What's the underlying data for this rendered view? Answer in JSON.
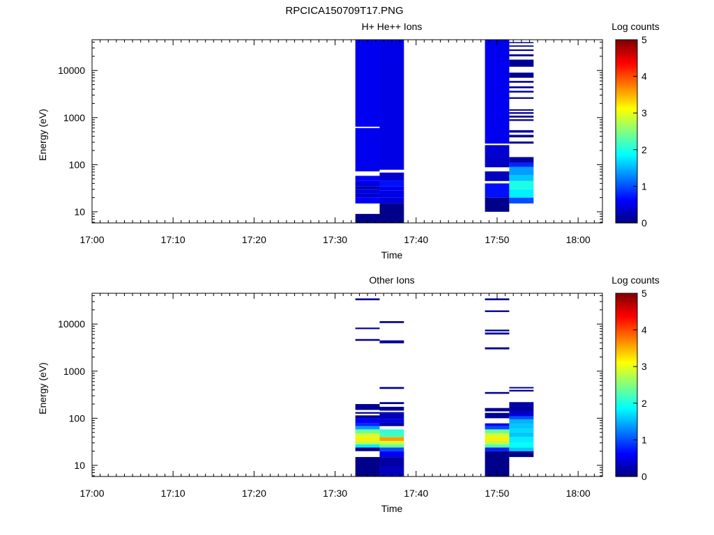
{
  "figure_title": "RPCICA150709T17.PNG",
  "colors": {
    "axis": "#000000",
    "background": "#ffffff"
  },
  "chart_data": [
    {
      "type": "heatmap",
      "title": "H+ He++ Ions",
      "xlabel": "Time",
      "ylabel": "Energy (eV)",
      "x_scale": "time",
      "y_scale": "log",
      "xlim": [
        "17:00",
        "18:03"
      ],
      "ylim": [
        5.8,
        45000
      ],
      "x_ticks": [
        "17:00",
        "17:10",
        "17:20",
        "17:30",
        "17:40",
        "17:50",
        "18:00"
      ],
      "y_ticks": [
        10,
        100,
        1000,
        10000
      ],
      "y_tick_labels": [
        "10",
        "100",
        "1000",
        "10000"
      ],
      "colorbar": {
        "label": "Log counts",
        "range": [
          0,
          5
        ],
        "ticks": [
          "0",
          "1",
          "2",
          "3",
          "4",
          "5"
        ],
        "colormap": "jet"
      },
      "columns": [
        {
          "start": "17:32.5",
          "end": "17:35.5",
          "cells": [
            [
              5.8,
              9,
              0.05
            ],
            [
              9,
              15,
              null
            ],
            [
              15,
              20,
              0.6
            ],
            [
              20,
              25,
              0.4
            ],
            [
              25,
              30,
              0.5
            ],
            [
              30,
              35,
              0.2
            ],
            [
              35,
              45,
              0.5
            ],
            [
              45,
              58,
              0.6
            ],
            [
              58,
              72,
              null
            ],
            [
              72,
              600,
              0.55
            ],
            [
              600,
              640,
              null
            ],
            [
              640,
              45000,
              0.55
            ]
          ]
        },
        {
          "start": "17:35.5",
          "end": "17:38.5",
          "cells": [
            [
              5.8,
              15,
              0.05
            ],
            [
              15,
              20,
              0.45
            ],
            [
              20,
              28,
              0.5
            ],
            [
              28,
              35,
              0.55
            ],
            [
              35,
              45,
              0.7
            ],
            [
              45,
              68,
              0.4
            ],
            [
              68,
              78,
              null
            ],
            [
              78,
              45000,
              0.5
            ]
          ]
        },
        {
          "start": "17:48.5",
          "end": "17:51.5",
          "cells": [
            [
              10,
              20,
              0.05
            ],
            [
              20,
              40,
              0.7
            ],
            [
              40,
              45,
              null
            ],
            [
              45,
              72,
              0.3
            ],
            [
              72,
              88,
              null
            ],
            [
              88,
              150,
              0.35
            ],
            [
              150,
              260,
              0.4
            ],
            [
              260,
              280,
              null
            ],
            [
              280,
              45000,
              0.55
            ]
          ]
        },
        {
          "start": "17:51.5",
          "end": "17:54.5",
          "cells": [
            [
              15,
              20,
              1.0
            ],
            [
              20,
              30,
              1.8
            ],
            [
              30,
              45,
              2.0
            ],
            [
              45,
              60,
              1.6
            ],
            [
              60,
              90,
              1.4
            ],
            [
              90,
              110,
              0.8
            ],
            [
              110,
              145,
              0.2
            ],
            [
              280,
              310,
              0.1
            ],
            [
              380,
              430,
              0.1
            ],
            [
              480,
              540,
              0.1
            ],
            [
              850,
              920,
              0.1
            ],
            [
              1000,
              1100,
              0.1
            ],
            [
              1200,
              1300,
              0.1
            ],
            [
              1400,
              1500,
              0.1
            ],
            [
              2500,
              2700,
              0.1
            ],
            [
              3400,
              3700,
              0.1
            ],
            [
              4200,
              4600,
              0.1
            ],
            [
              5500,
              6000,
              0.1
            ],
            [
              7000,
              9000,
              0.1
            ],
            [
              12000,
              17000,
              0.1
            ],
            [
              20000,
              22000,
              0.1
            ],
            [
              26000,
              28000,
              0.1
            ],
            [
              32000,
              34000,
              0.1
            ],
            [
              38000,
              40000,
              0.1
            ]
          ]
        }
      ]
    },
    {
      "type": "heatmap",
      "title": "Other Ions",
      "xlabel": "Time",
      "ylabel": "Energy (eV)",
      "x_scale": "time",
      "y_scale": "log",
      "xlim": [
        "17:00",
        "18:03"
      ],
      "ylim": [
        5.8,
        45000
      ],
      "x_ticks": [
        "17:00",
        "17:10",
        "17:20",
        "17:30",
        "17:40",
        "17:50",
        "18:00"
      ],
      "y_ticks": [
        10,
        100,
        1000,
        10000
      ],
      "y_tick_labels": [
        "10",
        "100",
        "1000",
        "10000"
      ],
      "colorbar": {
        "label": "Log counts",
        "range": [
          0,
          5
        ],
        "ticks": [
          "0",
          "1",
          "2",
          "3",
          "4",
          "5"
        ],
        "colormap": "jet"
      },
      "columns": [
        {
          "start": "17:32.5",
          "end": "17:35.5",
          "cells": [
            [
              5.8,
              15,
              0.05
            ],
            [
              15,
              20,
              null
            ],
            [
              20,
              24,
              0.05
            ],
            [
              24,
              28,
              1.8
            ],
            [
              28,
              33,
              2.8
            ],
            [
              33,
              40,
              3.2
            ],
            [
              40,
              48,
              2.9
            ],
            [
              48,
              58,
              2.4
            ],
            [
              58,
              68,
              1.4
            ],
            [
              68,
              78,
              0.8
            ],
            [
              78,
              100,
              0.6
            ],
            [
              100,
              115,
              0.1
            ],
            [
              115,
              125,
              null
            ],
            [
              125,
              135,
              0.1
            ],
            [
              135,
              150,
              null
            ],
            [
              150,
              200,
              0.1
            ],
            [
              4400,
              4800,
              0.1
            ],
            [
              7800,
              8400,
              0.1
            ],
            [
              32000,
              35000,
              0.1
            ]
          ]
        },
        {
          "start": "17:35.5",
          "end": "17:38.5",
          "cells": [
            [
              5.8,
              10,
              0.3
            ],
            [
              10,
              15,
              0.15
            ],
            [
              15,
              20,
              0.6
            ],
            [
              20,
              24,
              1.0
            ],
            [
              24,
              28,
              2.4
            ],
            [
              28,
              33,
              2.9
            ],
            [
              33,
              40,
              3.6
            ],
            [
              40,
              48,
              2.2
            ],
            [
              48,
              58,
              2.1
            ],
            [
              58,
              68,
              null
            ],
            [
              68,
              80,
              0.2
            ],
            [
              80,
              95,
              0.5
            ],
            [
              95,
              125,
              0.3
            ],
            [
              125,
              135,
              0.1
            ],
            [
              145,
              175,
              0.1
            ],
            [
              200,
              220,
              0.1
            ],
            [
              420,
              460,
              0.1
            ],
            [
              3900,
              4500,
              0.1
            ],
            [
              10500,
              11500,
              0.1
            ]
          ]
        },
        {
          "start": "17:48.5",
          "end": "17:51.5",
          "cells": [
            [
              5.8,
              20,
              0.05
            ],
            [
              20,
              24,
              0.8
            ],
            [
              24,
              28,
              2.3
            ],
            [
              28,
              33,
              2.8
            ],
            [
              33,
              40,
              3.2
            ],
            [
              40,
              48,
              2.9
            ],
            [
              48,
              58,
              2.4
            ],
            [
              58,
              68,
              1.0
            ],
            [
              68,
              78,
              0.6
            ],
            [
              78,
              100,
              null
            ],
            [
              100,
              130,
              0.1
            ],
            [
              130,
              140,
              null
            ],
            [
              140,
              165,
              0.1
            ],
            [
              330,
              360,
              0.1
            ],
            [
              2900,
              3200,
              0.1
            ],
            [
              6000,
              6600,
              0.1
            ],
            [
              7000,
              7600,
              0.1
            ],
            [
              18000,
              19500,
              0.1
            ],
            [
              32000,
              35000,
              0.1
            ]
          ]
        },
        {
          "start": "17:51.5",
          "end": "17:54.5",
          "cells": [
            [
              15,
              20,
              0.05
            ],
            [
              20,
              24,
              1.6
            ],
            [
              24,
              30,
              1.9
            ],
            [
              30,
              40,
              1.8
            ],
            [
              40,
              50,
              1.6
            ],
            [
              50,
              60,
              1.7
            ],
            [
              60,
              75,
              1.6
            ],
            [
              75,
              95,
              1.5
            ],
            [
              95,
              110,
              1.0
            ],
            [
              110,
              140,
              0.4
            ],
            [
              140,
              175,
              0.15
            ],
            [
              175,
              220,
              0.2
            ],
            [
              370,
              400,
              0.1
            ],
            [
              430,
              460,
              0.1
            ]
          ]
        }
      ]
    }
  ]
}
